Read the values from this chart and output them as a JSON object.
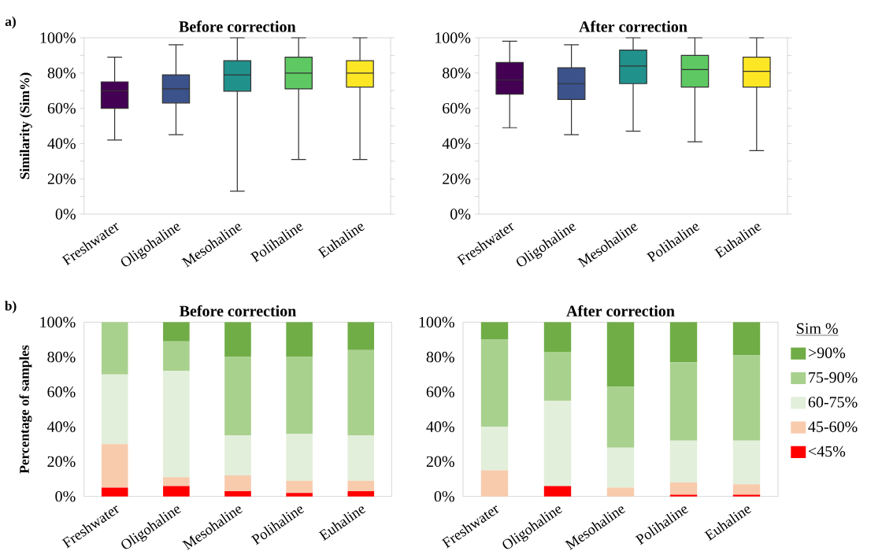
{
  "chart_data": [
    {
      "type": "box",
      "title": "Before correction",
      "ylabel": "Similarity  (Sim%)",
      "annotations": [
        "a)"
      ],
      "categories": [
        "Freshwater",
        "Oligohaline",
        "Mesohaline",
        "Polihaline",
        "Euhaline"
      ],
      "colors": [
        "#440154",
        "#3b528b",
        "#21918c",
        "#5ec962",
        "#fde725"
      ],
      "boxes": [
        {
          "low": 42,
          "q1": 60,
          "median": 70,
          "q3": 75,
          "high": 89
        },
        {
          "low": 45,
          "q1": 63,
          "median": 71,
          "q3": 79,
          "high": 96
        },
        {
          "low": 13,
          "q1": 69.7,
          "median": 79,
          "q3": 87,
          "high": 100
        },
        {
          "low": 31,
          "q1": 71,
          "median": 80,
          "q3": 89,
          "high": 100
        },
        {
          "low": 31,
          "q1": 72,
          "median": 80,
          "q3": 87,
          "high": 100
        }
      ],
      "ylim": [
        0,
        100
      ],
      "yticks": [
        {
          "value": 0,
          "label": "0%"
        },
        {
          "value": 10,
          "label": null
        },
        {
          "value": 20,
          "label": "20%"
        },
        {
          "value": 30,
          "label": null
        },
        {
          "value": 40,
          "label": "40%"
        },
        {
          "value": 50,
          "label": null
        },
        {
          "value": 60,
          "label": "60%"
        },
        {
          "value": 70,
          "label": null
        },
        {
          "value": 80,
          "label": "80%"
        },
        {
          "value": 90,
          "label": null
        },
        {
          "value": 100,
          "label": "100%"
        }
      ]
    },
    {
      "type": "box",
      "title": "After correction",
      "categories": [
        "Freshwater",
        "Oligohaline",
        "Mesohaline",
        "Polihaline",
        "Euhaline"
      ],
      "colors": [
        "#440154",
        "#3b528b",
        "#21918c",
        "#5ec962",
        "#fde725"
      ],
      "boxes": [
        {
          "low": 49,
          "q1": 68,
          "median": 76,
          "q3": 86,
          "high": 98
        },
        {
          "low": 45,
          "q1": 65,
          "median": 74,
          "q3": 83,
          "high": 96
        },
        {
          "low": 47,
          "q1": 74,
          "median": 84,
          "q3": 93,
          "high": 100
        },
        {
          "low": 41,
          "q1": 72,
          "median": 82,
          "q3": 90,
          "high": 100
        },
        {
          "low": 36,
          "q1": 72,
          "median": 81,
          "q3": 89,
          "high": 100
        }
      ],
      "ylim": [
        0,
        100
      ],
      "yticks": [
        {
          "value": 0,
          "label": "0%"
        },
        {
          "value": 10,
          "label": null
        },
        {
          "value": 20,
          "label": "20%"
        },
        {
          "value": 30,
          "label": null
        },
        {
          "value": 40,
          "label": "40%"
        },
        {
          "value": 50,
          "label": null
        },
        {
          "value": 60,
          "label": "60%"
        },
        {
          "value": 70,
          "label": null
        },
        {
          "value": 80,
          "label": "80%"
        },
        {
          "value": 90,
          "label": null
        },
        {
          "value": 100,
          "label": "100%"
        }
      ]
    },
    {
      "type": "bar",
      "stacked": true,
      "title": "Before correction",
      "ylabel": "Percentage of samples",
      "annotations": [
        "b)"
      ],
      "categories": [
        "Freshwater",
        "Oligohaline",
        "Mesohaline",
        "Polihaline",
        "Euhaline"
      ],
      "series": [
        {
          "color": "#ff0000",
          "values": [
            5,
            6,
            3,
            2,
            3
          ]
        },
        {
          "color": "#f8cbad",
          "values": [
            25,
            5,
            9,
            7,
            6
          ]
        },
        {
          "color": "#e2efda",
          "values": [
            40,
            61,
            23,
            27,
            26
          ]
        },
        {
          "color": "#a9d18e",
          "values": [
            30,
            17,
            45,
            44,
            49
          ]
        },
        {
          "color": "#70ad47",
          "values": [
            0,
            11,
            20,
            20,
            16
          ]
        }
      ],
      "ylim": [
        0,
        100
      ],
      "yticks": [
        {
          "value": 0,
          "label": "0%"
        },
        {
          "value": 20,
          "label": "20%"
        },
        {
          "value": 40,
          "label": "40%"
        },
        {
          "value": 60,
          "label": "60%"
        },
        {
          "value": 80,
          "label": "80%"
        },
        {
          "value": 100,
          "label": "100%"
        }
      ]
    },
    {
      "type": "bar",
      "stacked": true,
      "title": "After correction",
      "legend_title": "Sim %",
      "legend": "right",
      "categories": [
        "Freshwater",
        "Oligohaline",
        "Mesohaline",
        "Polihaline",
        "Euhaline"
      ],
      "series": [
        {
          "name": "<45%",
          "color": "#ff0000",
          "values": [
            0,
            6,
            0,
            1,
            1
          ]
        },
        {
          "name": "45-60%",
          "color": "#f8cbad",
          "values": [
            15,
            0,
            5,
            7,
            6
          ]
        },
        {
          "name": "60-75%",
          "color": "#e2efda",
          "values": [
            25,
            49,
            23,
            24,
            25
          ]
        },
        {
          "name": "75-90%",
          "color": "#a9d18e",
          "values": [
            50,
            28,
            35,
            45,
            49
          ]
        },
        {
          "name": ">90%",
          "color": "#70ad47",
          "values": [
            10,
            17,
            37,
            23,
            19
          ]
        }
      ],
      "ylim": [
        0,
        100
      ],
      "yticks": [
        {
          "value": 0,
          "label": "0%"
        },
        {
          "value": 20,
          "label": "20%"
        },
        {
          "value": 40,
          "label": "40%"
        },
        {
          "value": 60,
          "label": "60%"
        },
        {
          "value": 80,
          "label": "80%"
        },
        {
          "value": 100,
          "label": "100%"
        }
      ]
    }
  ]
}
